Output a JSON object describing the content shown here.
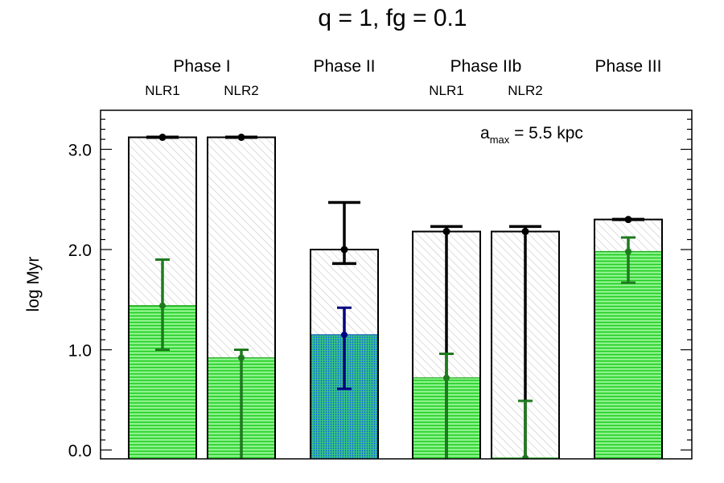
{
  "chart_data": {
    "type": "bar",
    "title": "q = 1, fg = 0.1",
    "ylabel": "log Myr",
    "xlabel": "",
    "ylim": [
      -0.08,
      3.4
    ],
    "yticks": [
      "0.0",
      "1.0",
      "2.0",
      "3.0"
    ],
    "annotation": {
      "main": "a",
      "sub": "max",
      "rest": " = 5.5 kpc"
    },
    "phases": [
      {
        "label": "Phase I",
        "bars": [
          0,
          1
        ]
      },
      {
        "label": "Phase II",
        "bars": [
          2
        ]
      },
      {
        "label": "Phase IIb",
        "bars": [
          3,
          4
        ]
      },
      {
        "label": "Phase III",
        "bars": [
          5
        ]
      }
    ],
    "bars": [
      {
        "sublabel": "NLR1",
        "total": 3.12,
        "total_err": [
          3.12,
          3.12
        ],
        "sub_value": 1.44,
        "sub_err": [
          1.0,
          1.9
        ],
        "sub_kind": "green"
      },
      {
        "sublabel": "NLR2",
        "total": 3.12,
        "total_err": [
          3.12,
          3.12
        ],
        "sub_value": 0.92,
        "sub_err": [
          -0.1,
          1.0
        ],
        "sub_kind": "green"
      },
      {
        "sublabel": "",
        "total": 2.0,
        "total_err": [
          1.86,
          2.47
        ],
        "sub_value": 1.15,
        "sub_err": [
          0.61,
          1.42
        ],
        "sub_kind": "blue"
      },
      {
        "sublabel": "NLR1",
        "total": 2.18,
        "total_err": [
          -0.1,
          2.23
        ],
        "sub_value": 0.72,
        "sub_err": [
          -0.1,
          0.96
        ],
        "sub_kind": "green"
      },
      {
        "sublabel": "NLR2",
        "total": 2.18,
        "total_err": [
          -0.1,
          2.23
        ],
        "sub_value": -0.08,
        "sub_err": [
          -0.1,
          0.49
        ],
        "sub_kind": "green"
      },
      {
        "sublabel": "",
        "total": 2.3,
        "total_err": [
          2.3,
          2.3
        ],
        "sub_value": 1.98,
        "sub_err": [
          1.67,
          2.12
        ],
        "sub_kind": "green"
      }
    ],
    "colors": {
      "green_fill": "#33ee33",
      "green_err": "#1f7a1f",
      "blue_fill": "#22aaaa",
      "blue_err": "#000080",
      "black": "#000000"
    }
  }
}
